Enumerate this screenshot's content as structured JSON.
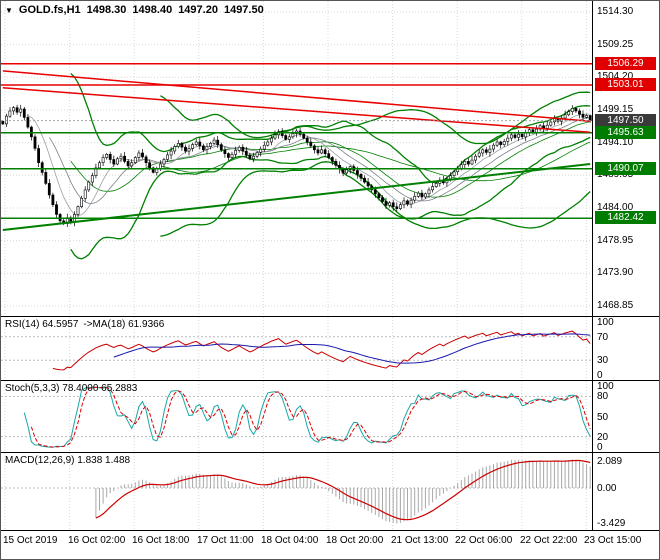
{
  "icons": {
    "dropdown": "▼"
  },
  "header": {
    "symbol": "GOLD.fs,H1",
    "open": "1498.30",
    "high": "1498.40",
    "low": "1497.20",
    "close": "1497.50"
  },
  "price_scale": {
    "labels": [
      "1514.30",
      "1509.25",
      "1504.20",
      "1499.15",
      "1494.10",
      "1489.05",
      "1484.00",
      "1478.95",
      "1473.90",
      "1468.85"
    ],
    "values": [
      1514.3,
      1509.25,
      1504.2,
      1499.15,
      1494.1,
      1489.05,
      1484.0,
      1478.95,
      1473.9,
      1468.85
    ]
  },
  "badges": [
    {
      "label": "1506.29",
      "price": 1506.29,
      "bg": "#e00000"
    },
    {
      "label": "1503.01",
      "price": 1503.01,
      "bg": "#e00000"
    },
    {
      "label": "1497.50",
      "price": 1497.5,
      "bg": "#3a3a3a"
    },
    {
      "label": "1495.63",
      "price": 1495.63,
      "bg": "#007d00"
    },
    {
      "label": "1490.07",
      "price": 1490.07,
      "bg": "#007d00"
    },
    {
      "label": "1482.42",
      "price": 1482.42,
      "bg": "#007d00"
    }
  ],
  "panels": {
    "rsi": {
      "label": "RSI(14) 64.5957",
      "label2": "->MA(18) 61.9366",
      "scale_labels": [
        "100",
        "70",
        "30",
        "0"
      ],
      "scale_values": [
        100,
        70,
        30,
        0
      ],
      "levels": [
        70,
        30
      ],
      "period": 14,
      "ma_period": 18,
      "color_main": "#cc0000",
      "color_ma": "#1a1aae"
    },
    "stoch": {
      "label": "Stoch(5,3,3) 78.4000 65.2883",
      "scale_labels": [
        "100",
        "80",
        "50",
        "20",
        "0"
      ],
      "scale_values": [
        100,
        80,
        50,
        20,
        0
      ],
      "levels": [
        80,
        20
      ],
      "color_k": "#18a7a7",
      "color_d": "#dd0000"
    },
    "macd": {
      "label": "MACD(12,26,9) 1.838 1.488",
      "scale_labels": [
        "2.089",
        "0.00",
        "-3.429"
      ],
      "color_hist": "#a8a8a8",
      "color_signal": "#cc0000"
    }
  },
  "time_axis": {
    "labels": [
      "15 Oct 2019",
      "16 Oct 02:00",
      "16 Oct 18:00",
      "17 Oct 11:00",
      "18 Oct 04:00",
      "18 Oct 20:00",
      "21 Oct 13:00",
      "22 Oct 06:00",
      "22 Oct 22:00",
      "23 Oct 15:00"
    ]
  },
  "chart_data": {
    "type": "candlestick",
    "symbol": "GOLD.fs",
    "timeframe": "H1",
    "title": "GOLD.fs,H1 1498.30 1498.40 1497.20 1497.50",
    "price_min": 1467.3,
    "price_max": 1516.0,
    "closes": [
      1497.0,
      1498.2,
      1499.0,
      1499.5,
      1498.8,
      1499.3,
      1498.0,
      1496.5,
      1495.0,
      1493.2,
      1491.0,
      1489.5,
      1487.8,
      1486.0,
      1484.5,
      1483.0,
      1482.0,
      1481.6,
      1482.5,
      1481.8,
      1483.0,
      1484.2,
      1485.5,
      1486.8,
      1488.0,
      1489.0,
      1490.2,
      1491.0,
      1491.8,
      1492.3,
      1491.5,
      1490.8,
      1491.6,
      1492.0,
      1491.2,
      1490.5,
      1491.0,
      1491.8,
      1492.5,
      1491.9,
      1491.0,
      1490.2,
      1489.5,
      1490.0,
      1490.8,
      1491.5,
      1492.2,
      1492.8,
      1493.5,
      1494.0,
      1493.4,
      1492.8,
      1493.2,
      1493.8,
      1494.2,
      1493.6,
      1493.0,
      1493.5,
      1494.0,
      1494.5,
      1493.8,
      1493.0,
      1492.4,
      1491.8,
      1492.3,
      1492.9,
      1493.4,
      1492.8,
      1492.2,
      1491.6,
      1492.0,
      1492.6,
      1493.1,
      1493.7,
      1494.2,
      1494.8,
      1495.3,
      1495.8,
      1495.2,
      1494.6,
      1495.0,
      1495.5,
      1495.9,
      1495.4,
      1494.8,
      1494.2,
      1493.6,
      1493.0,
      1492.5,
      1493.0,
      1492.4,
      1491.8,
      1491.2,
      1490.6,
      1490.0,
      1489.4,
      1489.9,
      1490.4,
      1489.8,
      1489.2,
      1488.6,
      1488.0,
      1487.4,
      1486.8,
      1486.2,
      1485.6,
      1485.0,
      1484.4,
      1484.8,
      1484.2,
      1483.9,
      1484.5,
      1485.1,
      1484.6,
      1485.2,
      1485.8,
      1486.3,
      1485.7,
      1486.2,
      1486.8,
      1487.3,
      1487.8,
      1488.3,
      1487.9,
      1488.5,
      1489.0,
      1489.6,
      1490.1,
      1490.7,
      1491.2,
      1490.8,
      1491.4,
      1492.0,
      1492.5,
      1493.0,
      1492.6,
      1493.1,
      1493.7,
      1494.2,
      1493.8,
      1494.3,
      1494.8,
      1495.3,
      1494.9,
      1495.4,
      1495.0,
      1495.6,
      1496.1,
      1495.7,
      1496.2,
      1496.7,
      1496.3,
      1496.8,
      1497.3,
      1497.8,
      1497.4,
      1497.9,
      1498.4,
      1498.9,
      1499.4,
      1499.0,
      1498.5,
      1498.0,
      1498.3,
      1497.5
    ],
    "last_candle": {
      "o": 1498.3,
      "h": 1498.4,
      "l": 1497.2,
      "c": 1497.5
    },
    "bollinger": [
      {
        "period": 20,
        "dev": 2.0,
        "color": "#008000"
      },
      {
        "period": 45,
        "dev": 2.2,
        "color": "#008000"
      }
    ],
    "sma_overlays": [
      {
        "period": 8,
        "color": "#9aa0a6"
      },
      {
        "period": 14,
        "color": "#7a8087"
      }
    ],
    "h_lines": [
      {
        "price": 1506.29,
        "color": "#e80000",
        "width": 1.5
      },
      {
        "price": 1503.01,
        "color": "#e80000",
        "width": 1.5
      },
      {
        "price": 1495.63,
        "color": "#008000",
        "width": 1.5
      },
      {
        "price": 1490.07,
        "color": "#008000",
        "width": 1.5
      },
      {
        "price": 1482.42,
        "color": "#008000",
        "width": 1.5
      }
    ],
    "trend_lines": [
      {
        "i1": 0,
        "p1": 1505.2,
        "i2": 164,
        "p2": 1497.4,
        "color": "#e80000",
        "width": 1.5
      },
      {
        "i1": 0,
        "p1": 1502.6,
        "i2": 164,
        "p2": 1495.7,
        "color": "#e80000",
        "width": 1.5
      },
      {
        "i1": 0,
        "p1": 1480.6,
        "i2": 164,
        "p2": 1490.8,
        "color": "#008000",
        "width": 2
      }
    ],
    "current_price": 1497.5
  }
}
